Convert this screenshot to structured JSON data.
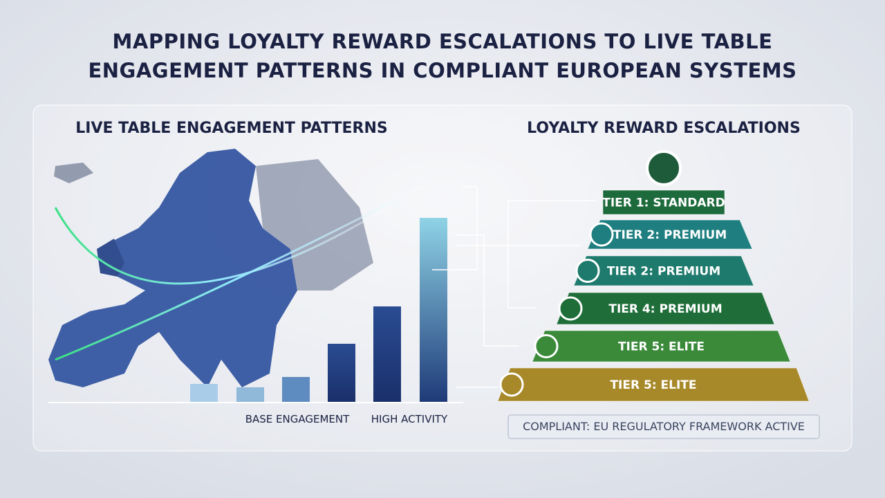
{
  "header": {
    "title": [
      "MAPPING LOYALTY REWARD ESCALATIONS TO LIVE TABLE",
      "ENGAGEMENT PATTERNS IN COMPLIANT EUROPEAN SYSTEMS"
    ]
  },
  "left_panel": {
    "title": "LIVE TABLE ENGAGEMENT PATTERNS",
    "labels": [
      "BASE ENGAGEMENT",
      "HIGH ACTIVITY"
    ]
  },
  "right_panel": {
    "title": "LOYALTY REWARD ESCALATIONS",
    "tiers": [
      "TIER 1: STANDARD",
      "TIER 2: PREMIUM",
      "TIER 2: PREMIUM",
      "TIER 4: PREMIUM",
      "TIER 5: ELITE",
      "TIER 5: ELITE"
    ],
    "footer": "COMPLIANT: EU REGULATORY FRAMEWORK ACTIVE"
  }
}
